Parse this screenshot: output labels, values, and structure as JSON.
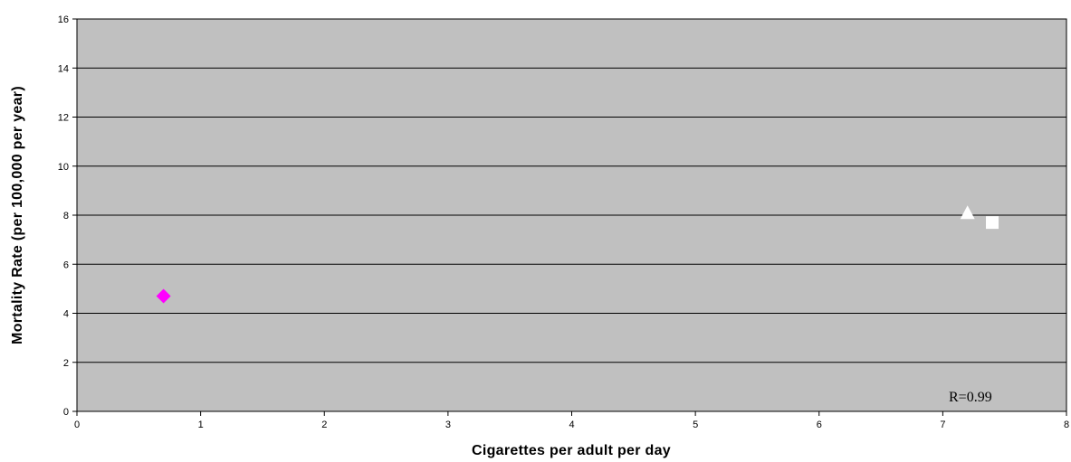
{
  "chart_data": {
    "type": "scatter",
    "xlabel": "Cigarettes per adult per day",
    "ylabel": "Mortality Rate (per 100,000 per year)",
    "xlim": [
      0,
      8
    ],
    "ylim": [
      0,
      16
    ],
    "x_ticks": [
      "0",
      "1",
      "2",
      "3",
      "4",
      "5",
      "6",
      "7",
      "8"
    ],
    "y_ticks": [
      "0",
      "2",
      "4",
      "6",
      "8",
      "10",
      "12",
      "14",
      "16"
    ],
    "grid": "horizontal",
    "plot_background": "#c0c0c0",
    "annotation": "R=0.99",
    "points": [
      {
        "x": 0.7,
        "y": 4.7,
        "marker": "diamond",
        "color": "#ff00ff"
      },
      {
        "x": 7.2,
        "y": 8.1,
        "marker": "triangle",
        "color": "#ffffff"
      },
      {
        "x": 7.4,
        "y": 7.7,
        "marker": "square",
        "color": "#ffffff"
      }
    ]
  }
}
